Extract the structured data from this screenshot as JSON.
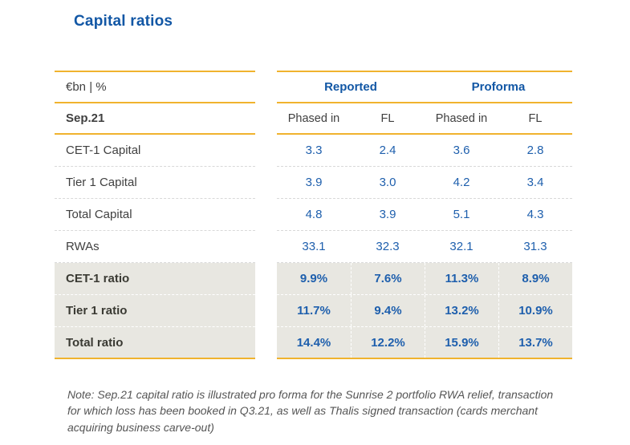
{
  "title": "Capital ratios",
  "table": {
    "unit_header": "€bn | %",
    "period": "Sep.21",
    "group_headers": [
      "Reported",
      "Proforma"
    ],
    "sub_headers": [
      "Phased in",
      "FL",
      "Phased in",
      "FL"
    ],
    "rows": [
      {
        "label": "CET-1 Capital",
        "values": [
          "3.3",
          "2.4",
          "3.6",
          "2.8"
        ],
        "highlight": false
      },
      {
        "label": "Tier 1 Capital",
        "values": [
          "3.9",
          "3.0",
          "4.2",
          "3.4"
        ],
        "highlight": false
      },
      {
        "label": "Total Capital",
        "values": [
          "4.8",
          "3.9",
          "5.1",
          "4.3"
        ],
        "highlight": false
      },
      {
        "label": "RWAs",
        "values": [
          "33.1",
          "32.3",
          "32.1",
          "31.3"
        ],
        "highlight": false
      },
      {
        "label": "CET-1 ratio",
        "values": [
          "9.9%",
          "7.6%",
          "11.3%",
          "8.9%"
        ],
        "highlight": true
      },
      {
        "label": "Tier 1 ratio",
        "values": [
          "11.7%",
          "9.4%",
          "13.2%",
          "10.9%"
        ],
        "highlight": true
      },
      {
        "label": "Total ratio",
        "values": [
          "14.4%",
          "12.2%",
          "15.9%",
          "13.7%"
        ],
        "highlight": true
      }
    ]
  },
  "note": "Note: Sep.21 capital ratio is illustrated pro forma for the Sunrise 2 portfolio RWA relief, transaction for which loss has been booked in Q3.21, as well as Thalis signed transaction (cards merchant acquiring business carve-out)",
  "colors": {
    "accent_gold": "#F0B32E",
    "brand_blue": "#1257A5",
    "value_blue": "#1E5FAD",
    "label_gray": "#404040",
    "highlight_bg": "#E8E7E1",
    "note_gray": "#555555"
  }
}
